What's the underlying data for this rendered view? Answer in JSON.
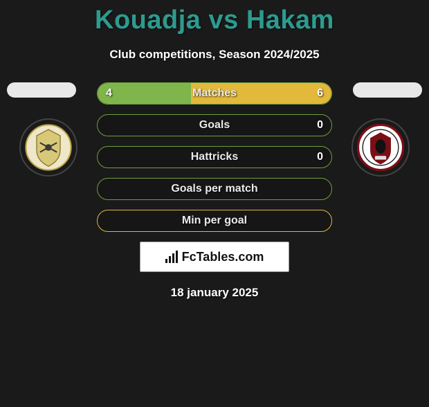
{
  "title": "Kouadja vs Hakam",
  "subtitle": "Club competitions, Season 2024/2025",
  "date": "18 january 2025",
  "brand": "FcTables.com",
  "colors": {
    "title_color": "#2d9b8f",
    "subtitle_color": "#ffffff",
    "background": "#1a1a1a",
    "pill_bg": "#e8e8e8",
    "brand_bg": "#ffffff"
  },
  "players": {
    "left": {
      "name_pill_color": "#e8e8e8",
      "badge_bg": "#efe7c9",
      "badge_border": "#b9a23f"
    },
    "right": {
      "name_pill_color": "#e8e8e8",
      "badge_bg": "#ffffff",
      "badge_border": "#7a0f16"
    }
  },
  "bars": [
    {
      "label": "Matches",
      "left_value": "4",
      "right_value": "6",
      "left_pct": 40,
      "right_pct": 60,
      "left_fill": "#7fb54a",
      "right_fill": "#e2b93a",
      "border_color": "#6da03e"
    },
    {
      "label": "Goals",
      "left_value": "",
      "right_value": "0",
      "left_pct": 0,
      "right_pct": 0,
      "left_fill": "#7fb54a",
      "right_fill": "#e2b93a",
      "border_color": "#6da03e"
    },
    {
      "label": "Hattricks",
      "left_value": "",
      "right_value": "0",
      "left_pct": 0,
      "right_pct": 0,
      "left_fill": "#7fb54a",
      "right_fill": "#e2b93a",
      "border_color": "#6da03e"
    },
    {
      "label": "Goals per match",
      "left_value": "",
      "right_value": "",
      "left_pct": 0,
      "right_pct": 0,
      "left_fill": "#7fb54a",
      "right_fill": "#e2b93a",
      "border_color": "#6da03e"
    },
    {
      "label": "Min per goal",
      "left_value": "",
      "right_value": "",
      "left_pct": 0,
      "right_pct": 0,
      "left_fill": "#7fb54a",
      "right_fill": "#e2b93a",
      "border_color": "#e2b93a"
    }
  ]
}
